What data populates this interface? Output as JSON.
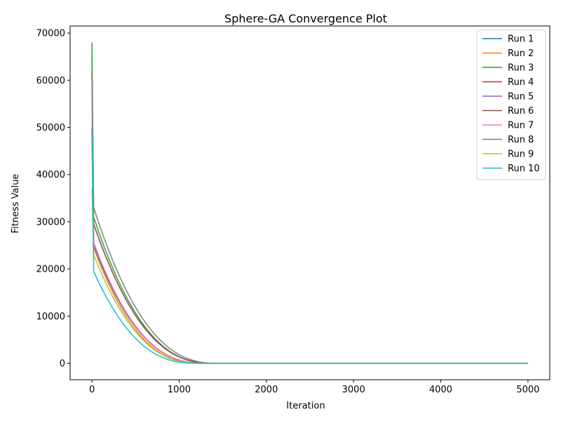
{
  "chart_data": {
    "type": "line",
    "title": "Sphere-GA Convergence Plot",
    "xlabel": "Iteration",
    "ylabel": "Fitness Value",
    "xlim": [
      -250,
      5250
    ],
    "ylim": [
      -3500,
      71500
    ],
    "xticks": [
      0,
      1000,
      2000,
      3000,
      4000,
      5000
    ],
    "yticks": [
      0,
      10000,
      20000,
      30000,
      40000,
      50000,
      60000,
      70000
    ],
    "grid": false,
    "legend_position": "top-right",
    "series": [
      {
        "name": "Run 1",
        "color": "#1f77b4",
        "start": 62000,
        "after_drop": 25000,
        "converge_at": 1300
      },
      {
        "name": "Run 2",
        "color": "#ff7f0e",
        "start": 64500,
        "after_drop": 24500,
        "converge_at": 1250
      },
      {
        "name": "Run 3",
        "color": "#2ca02c",
        "start": 68000,
        "after_drop": 31000,
        "converge_at": 1400
      },
      {
        "name": "Run 4",
        "color": "#d62728",
        "start": 49000,
        "after_drop": 25500,
        "converge_at": 1300
      },
      {
        "name": "Run 5",
        "color": "#9467bd",
        "start": 61000,
        "after_drop": 29500,
        "converge_at": 1400
      },
      {
        "name": "Run 6",
        "color": "#8c564b",
        "start": 50000,
        "after_drop": 29500,
        "converge_at": 1400
      },
      {
        "name": "Run 7",
        "color": "#e377c2",
        "start": 58000,
        "after_drop": 25500,
        "converge_at": 1300
      },
      {
        "name": "Run 8",
        "color": "#7f7f7f",
        "start": 61500,
        "after_drop": 33000,
        "converge_at": 1450
      },
      {
        "name": "Run 9",
        "color": "#bcbd22",
        "start": 37000,
        "after_drop": 23000,
        "converge_at": 1250
      },
      {
        "name": "Run 10",
        "color": "#17becf",
        "start": 49000,
        "after_drop": 19500,
        "converge_at": 1200
      }
    ]
  }
}
